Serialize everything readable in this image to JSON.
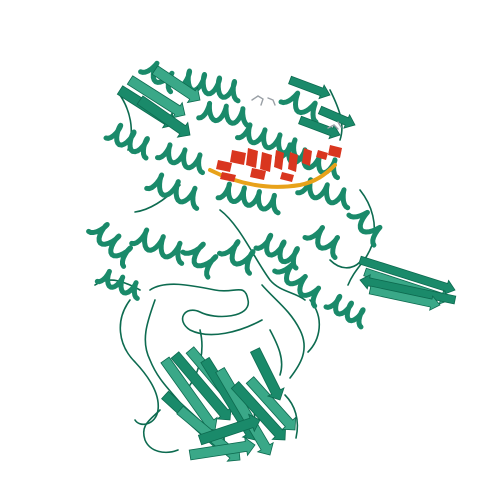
{
  "image": {
    "subject": "protein-ribbon-structure",
    "background_color": "#ffffff",
    "colors": {
      "protein_chain": "#1a8a6a",
      "protein_chain_dark": "#0d6b50",
      "protein_chain_light": "#3aa888",
      "nucleic_acid_orange": "#e8a21a",
      "nucleic_acid_red": "#d9361f",
      "ligand": "#9aa0a6"
    }
  }
}
